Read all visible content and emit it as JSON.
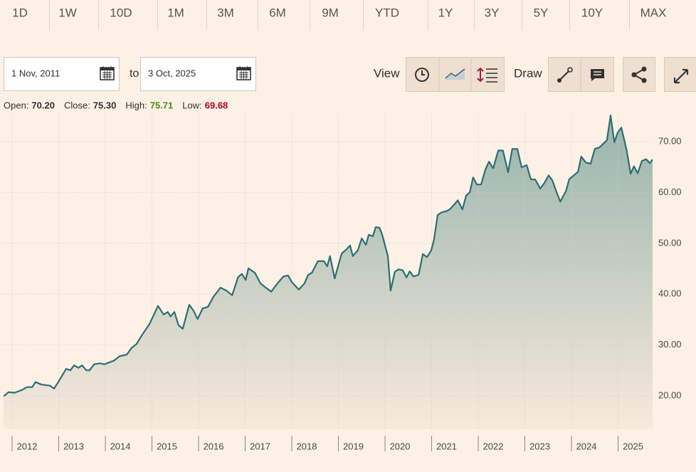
{
  "toolbar": {
    "periods": [
      "1D",
      "1W",
      "10D",
      "1M",
      "3M",
      "6M",
      "9M",
      "YTD",
      "1Y",
      "3Y",
      "5Y",
      "10Y",
      "MAX"
    ],
    "from_date": "1 Nov, 2011",
    "to_label": "to",
    "to_date": "3 Oct, 2025",
    "view_label": "View",
    "draw_label": "Draw"
  },
  "ohlc": [
    {
      "label": "Open:",
      "value": "70.20"
    },
    {
      "label": "Close:",
      "value": "75.30"
    },
    {
      "label": "High:",
      "value": "75.71"
    },
    {
      "label": "Low:",
      "value": "69.68"
    }
  ],
  "chart_data": {
    "type": "line",
    "x": [
      2011.82,
      2011.92,
      2012.05,
      2012.2,
      2012.32,
      2012.43,
      2012.5,
      2012.63,
      2012.81,
      2012.9,
      2012.99,
      2013.16,
      2013.25,
      2013.33,
      2013.42,
      2013.5,
      2013.59,
      2013.66,
      2013.76,
      2013.88,
      2013.98,
      2014.18,
      2014.31,
      2014.46,
      2014.56,
      2014.67,
      2014.79,
      2014.95,
      2015.13,
      2015.25,
      2015.34,
      2015.4,
      2015.48,
      2015.57,
      2015.66,
      2015.8,
      2015.89,
      2015.98,
      2016.09,
      2016.2,
      2016.32,
      2016.47,
      2016.6,
      2016.72,
      2016.85,
      2016.93,
      2017.01,
      2017.07,
      2017.21,
      2017.33,
      2017.44,
      2017.56,
      2017.69,
      2017.82,
      2017.92,
      2018.0,
      2018.15,
      2018.27,
      2018.35,
      2018.43,
      2018.56,
      2018.69,
      2018.76,
      2018.82,
      2018.92,
      2019.07,
      2019.18,
      2019.25,
      2019.31,
      2019.42,
      2019.5,
      2019.59,
      2019.65,
      2019.74,
      2019.8,
      2019.88,
      2019.94,
      2020.06,
      2020.12,
      2020.21,
      2020.29,
      2020.38,
      2020.46,
      2020.53,
      2020.61,
      2020.72,
      2020.81,
      2020.9,
      2020.99,
      2021.05,
      2021.13,
      2021.21,
      2021.33,
      2021.4,
      2021.5,
      2021.56,
      2021.66,
      2021.74,
      2021.82,
      2021.89,
      2021.97,
      2022.06,
      2022.15,
      2022.23,
      2022.32,
      2022.43,
      2022.53,
      2022.64,
      2022.73,
      2022.84,
      2022.93,
      2023.04,
      2023.13,
      2023.22,
      2023.33,
      2023.42,
      2023.51,
      2023.59,
      2023.68,
      2023.76,
      2023.88,
      2023.95,
      2024.05,
      2024.14,
      2024.21,
      2024.31,
      2024.41,
      2024.5,
      2024.6,
      2024.69,
      2024.76,
      2024.84,
      2024.92,
      2024.99,
      2025.07,
      2025.18,
      2025.27,
      2025.34,
      2025.42,
      2025.51,
      2025.6,
      2025.68,
      2025.74
    ],
    "series": [
      {
        "color": "#2b6f74",
        "values": [
          19.9,
          20.7,
          20.6,
          21.1,
          21.7,
          21.7,
          22.7,
          22.2,
          22.0,
          21.4,
          22.7,
          25.3,
          25.0,
          26.0,
          25.5,
          26.0,
          25.0,
          25.0,
          26.2,
          26.4,
          26.2,
          26.9,
          27.8,
          28.1,
          29.4,
          30.2,
          32.0,
          34.2,
          37.7,
          36.0,
          36.5,
          35.6,
          36.5,
          33.9,
          33.2,
          37.9,
          36.8,
          35.1,
          37.2,
          37.5,
          39.5,
          41.3,
          40.7,
          39.8,
          43.4,
          44.0,
          42.8,
          45.1,
          44.2,
          42.1,
          41.3,
          40.5,
          42.1,
          43.5,
          43.7,
          42.4,
          40.9,
          42.1,
          43.8,
          44.2,
          46.5,
          46.5,
          45.5,
          47.5,
          43.1,
          48.0,
          48.9,
          49.6,
          47.5,
          48.7,
          51.0,
          49.7,
          51.7,
          51.4,
          53.2,
          53.1,
          51.7,
          47.5,
          40.7,
          44.4,
          44.9,
          44.7,
          43.3,
          44.5,
          43.5,
          43.8,
          47.9,
          47.3,
          48.6,
          50.7,
          55.6,
          56.1,
          56.4,
          56.8,
          57.8,
          58.5,
          56.7,
          59.4,
          60.1,
          63.0,
          61.6,
          61.6,
          64.5,
          66.1,
          64.8,
          68.3,
          68.3,
          64.0,
          68.6,
          68.6,
          65.0,
          65.4,
          62.6,
          62.6,
          60.8,
          61.9,
          63.4,
          62.4,
          60.1,
          58.2,
          60.3,
          62.6,
          63.4,
          64.1,
          67.1,
          65.9,
          65.7,
          68.6,
          68.9,
          69.7,
          70.3,
          75.2,
          69.9,
          71.8,
          72.8,
          68.5,
          63.7,
          65.2,
          63.8,
          66.2,
          66.6,
          65.8,
          66.5
        ]
      }
    ],
    "xlim": [
      2011.74,
      2025.74
    ],
    "xticks": [
      2012,
      2013,
      2014,
      2015,
      2016,
      2017,
      2018,
      2019,
      2020,
      2021,
      2022,
      2023,
      2024,
      2025
    ],
    "ylim": [
      13.4,
      75.5
    ],
    "yticks": [
      {
        "value": 20,
        "label": "20.00"
      },
      {
        "value": 30,
        "label": "30.00"
      },
      {
        "value": 40,
        "label": "40.00"
      },
      {
        "value": 50,
        "label": "50.00"
      },
      {
        "value": 60,
        "label": "60.00"
      },
      {
        "value": 70,
        "label": "70.00"
      }
    ],
    "grid": true
  }
}
